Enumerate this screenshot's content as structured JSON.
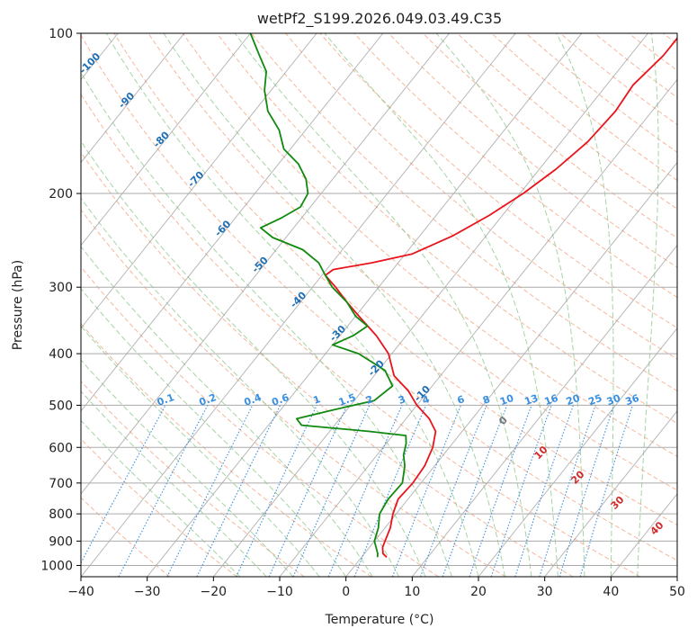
{
  "chart_data": {
    "type": "line",
    "title": "wetPf2_S199.2026.049.03.49.C35",
    "xlabel": "Temperature (°C)",
    "ylabel": "Pressure (hPa)",
    "xlim": [
      -40,
      50
    ],
    "ylim": [
      1050,
      100
    ],
    "x_ticks": [
      "−40",
      "−30",
      "−20",
      "−10",
      "0",
      "10",
      "20",
      "30",
      "40",
      "50"
    ],
    "y_ticks": [
      "100",
      "200",
      "300",
      "400",
      "500",
      "600",
      "700",
      "800",
      "900",
      "1000"
    ],
    "colors": {
      "temperature": "#e8141c",
      "dewpoint": "#0f8a0f",
      "dry_adiabat": "#f4a582",
      "moist_adiabat": "#8fc98f",
      "mixing_ratio": "#3a8fe0",
      "isotherm": "#9a9a9a",
      "skewed_isotherm_label": "#1f6fb5",
      "moist_label": "#d42a2a"
    },
    "series": [
      {
        "name": "Temperature",
        "color": "#e8141c",
        "points": [
          {
            "p": 965,
            "t": 3.8
          },
          {
            "p": 950,
            "t": 2.8
          },
          {
            "p": 925,
            "t": 2.0
          },
          {
            "p": 900,
            "t": 1.6
          },
          {
            "p": 850,
            "t": 0.8
          },
          {
            "p": 800,
            "t": -0.5
          },
          {
            "p": 750,
            "t": -1.5
          },
          {
            "p": 700,
            "t": -1.2
          },
          {
            "p": 650,
            "t": -1.5
          },
          {
            "p": 600,
            "t": -2.5
          },
          {
            "p": 560,
            "t": -4.0
          },
          {
            "p": 530,
            "t": -6.5
          },
          {
            "p": 500,
            "t": -10.0
          },
          {
            "p": 470,
            "t": -13.0
          },
          {
            "p": 440,
            "t": -17.0
          },
          {
            "p": 400,
            "t": -20.5
          },
          {
            "p": 370,
            "t": -24.5
          },
          {
            "p": 340,
            "t": -29.5
          },
          {
            "p": 320,
            "t": -33.0
          },
          {
            "p": 300,
            "t": -36.5
          },
          {
            "p": 285,
            "t": -39.5
          },
          {
            "p": 278,
            "t": -39.0
          },
          {
            "p": 270,
            "t": -34.0
          },
          {
            "p": 260,
            "t": -29.0
          },
          {
            "p": 240,
            "t": -25.0
          },
          {
            "p": 220,
            "t": -22.0
          },
          {
            "p": 200,
            "t": -19.5
          },
          {
            "p": 180,
            "t": -17.5
          },
          {
            "p": 160,
            "t": -16.0
          },
          {
            "p": 140,
            "t": -15.5
          },
          {
            "p": 125,
            "t": -16.0
          },
          {
            "p": 110,
            "t": -15.0
          },
          {
            "p": 100,
            "t": -15.0
          }
        ]
      },
      {
        "name": "Dewpoint",
        "color": "#0f8a0f",
        "points": [
          {
            "p": 965,
            "t": 2.4
          },
          {
            "p": 950,
            "t": 2.0
          },
          {
            "p": 900,
            "t": 0.0
          },
          {
            "p": 850,
            "t": -1.0
          },
          {
            "p": 800,
            "t": -2.5
          },
          {
            "p": 750,
            "t": -3.0
          },
          {
            "p": 700,
            "t": -2.8
          },
          {
            "p": 650,
            "t": -4.5
          },
          {
            "p": 620,
            "t": -6.0
          },
          {
            "p": 590,
            "t": -7.0
          },
          {
            "p": 570,
            "t": -8.0
          },
          {
            "p": 560,
            "t": -14.0
          },
          {
            "p": 545,
            "t": -25.0
          },
          {
            "p": 530,
            "t": -26.5
          },
          {
            "p": 510,
            "t": -22.0
          },
          {
            "p": 490,
            "t": -17.0
          },
          {
            "p": 460,
            "t": -16.0
          },
          {
            "p": 430,
            "t": -19.0
          },
          {
            "p": 400,
            "t": -25.0
          },
          {
            "p": 385,
            "t": -30.0
          },
          {
            "p": 370,
            "t": -28.0
          },
          {
            "p": 355,
            "t": -27.0
          },
          {
            "p": 340,
            "t": -30.0
          },
          {
            "p": 320,
            "t": -33.0
          },
          {
            "p": 300,
            "t": -37.0
          },
          {
            "p": 285,
            "t": -39.5
          },
          {
            "p": 270,
            "t": -42.0
          },
          {
            "p": 255,
            "t": -46.0
          },
          {
            "p": 242,
            "t": -52.0
          },
          {
            "p": 232,
            "t": -55.0
          },
          {
            "p": 222,
            "t": -53.0
          },
          {
            "p": 212,
            "t": -51.5
          },
          {
            "p": 200,
            "t": -52.0
          },
          {
            "p": 188,
            "t": -54.0
          },
          {
            "p": 176,
            "t": -57.0
          },
          {
            "p": 165,
            "t": -61.0
          },
          {
            "p": 152,
            "t": -64.0
          },
          {
            "p": 140,
            "t": -68.0
          },
          {
            "p": 128,
            "t": -71.0
          },
          {
            "p": 118,
            "t": -73.0
          },
          {
            "p": 110,
            "t": -76.0
          },
          {
            "p": 100,
            "t": -80.0
          }
        ]
      }
    ],
    "isotherm_labels": [
      "-100",
      "-90",
      "-80",
      "-70",
      "-60",
      "-50",
      "-40",
      "-30",
      "-20",
      "-10"
    ],
    "mixing_ratio_labels": [
      "0.1",
      "0.2",
      "0.4",
      "0.6",
      "1",
      "1.5",
      "2",
      "3",
      "4",
      "6",
      "8",
      "10",
      "13",
      "16",
      "20",
      "25",
      "30",
      "36"
    ],
    "moist_adiabat_labels": [
      "0",
      "10",
      "20",
      "30",
      "40"
    ]
  }
}
